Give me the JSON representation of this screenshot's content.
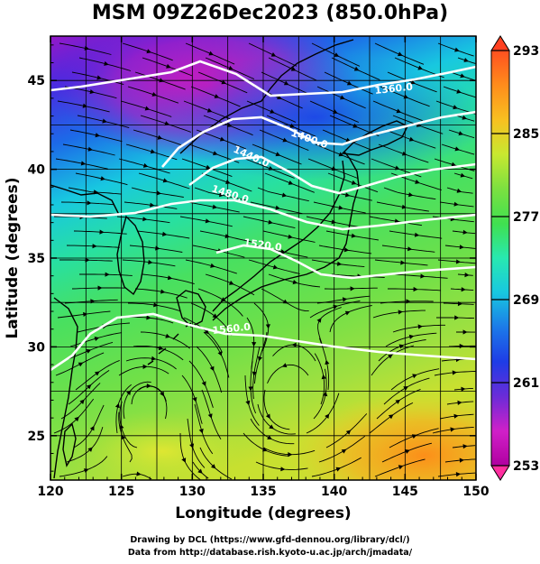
{
  "title": "MSM 09Z26Dec2023 (850.0hPa)",
  "xaxis": {
    "label": "Longitude (degrees)",
    "range": [
      120,
      150
    ],
    "ticks": [
      120,
      125,
      130,
      135,
      140,
      145,
      150
    ]
  },
  "yaxis": {
    "label": "Latitude  (degrees)",
    "range": [
      22.5,
      47.5
    ],
    "ticks": [
      25,
      30,
      35,
      40,
      45
    ]
  },
  "colorbar": {
    "min": 253,
    "max": 293,
    "tick_labels": [
      293,
      285,
      277,
      269,
      261,
      253
    ],
    "colors": [
      "#b000a0",
      "#d020c8",
      "#6a2cd8",
      "#1e3ce6",
      "#1c7ae8",
      "#18c8e0",
      "#28e8b0",
      "#40e050",
      "#7ce040",
      "#c8e830",
      "#f8c020",
      "#ff8c1c",
      "#ff5020"
    ]
  },
  "contours": [
    {
      "label": "1360.0"
    },
    {
      "label": "1400.0"
    },
    {
      "label": "1440.0"
    },
    {
      "label": "1480.0"
    },
    {
      "label": "1520.0"
    },
    {
      "label": "1560.0"
    }
  ],
  "credits": [
    "Drawing by DCL (https://www.gfd-dennou.org/library/dcl/)",
    "Data from http://database.rish.kyoto-u.ac.jp/arch/jmadata/"
  ]
}
